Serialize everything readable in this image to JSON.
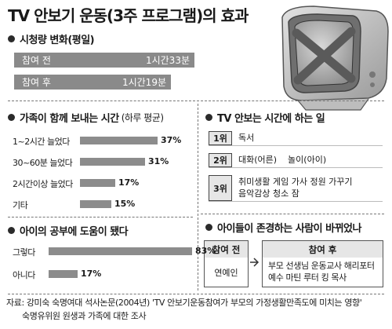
{
  "title": "TV 안보기 운동(3주 프로그램)의 효과",
  "viewing": {
    "heading": "시청량 변화(평일)",
    "rows": [
      {
        "label": "참여 전",
        "value": "1시간33분"
      },
      {
        "label": "참여 후",
        "value": "1시간19분"
      }
    ]
  },
  "family": {
    "heading": "가족이 함께 보내는 시간",
    "subheading": "(하루 평균)"
  },
  "study": {
    "heading": "아이의 공부에 도움이 됐다"
  },
  "activities": {
    "heading": "TV 안보는 시간에 하는 일",
    "items": [
      {
        "rank": "1위",
        "text": "독서"
      },
      {
        "rank": "2위",
        "text": "대화(어른)    놀이(아이)"
      },
      {
        "rank": "3위",
        "line1": "취미생활 게임 가사 정원 가꾸기",
        "line2": "음악감상 청소 잠"
      }
    ]
  },
  "respect": {
    "heading": "아이들이 존경하는 사람이 바뀌었나",
    "before_label": "참여 전",
    "before_value": "연예인",
    "after_label": "참여 후",
    "after_line1": "부모 선생님 운동교사 해리포터",
    "after_line2": "예수 마틴 루터 킹 목사"
  },
  "footer": {
    "line1": "자료: 강미숙 숙명여대 석사논문(2004년) 'TV 안보기운동참여가 부모의 가정생활만족도에 미치는 영향'",
    "line2": "숙명유위원 원생과 가족에 대한 조사"
  },
  "chart_data": [
    {
      "type": "bar",
      "orientation": "horizontal",
      "title": "가족이 함께 보내는 시간",
      "subtitle": "(하루 평균)",
      "categories": [
        "1~2시간 늘었다",
        "30~60분 늘었다",
        "2시간이상 늘었다",
        "기타"
      ],
      "values": [
        37,
        31,
        17,
        15
      ],
      "value_labels": [
        "37%",
        "31%",
        "17%",
        "15%"
      ],
      "unit": "%",
      "xlim": [
        0,
        40
      ],
      "grid": false
    },
    {
      "type": "bar",
      "orientation": "horizontal",
      "title": "아이의 공부에 도움이 됐다",
      "categories": [
        "그렇다",
        "아니다"
      ],
      "values": [
        83,
        17
      ],
      "value_labels": [
        "83%",
        "17%"
      ],
      "unit": "%",
      "xlim": [
        0,
        90
      ],
      "grid": false
    }
  ]
}
